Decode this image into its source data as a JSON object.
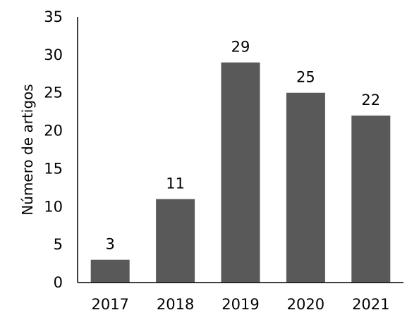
{
  "chart_data": {
    "type": "bar",
    "title": "",
    "xlabel": "",
    "ylabel": "Número de artigos",
    "categories": [
      "2017",
      "2018",
      "2019",
      "2020",
      "2021"
    ],
    "values": [
      3,
      11,
      29,
      25,
      22
    ],
    "ylim": [
      0,
      35
    ],
    "yticks": [
      0,
      5,
      10,
      15,
      20,
      25,
      30,
      35
    ],
    "grid": false,
    "legend": "none",
    "bar_color": "#595959",
    "axis_color": "#000000"
  }
}
